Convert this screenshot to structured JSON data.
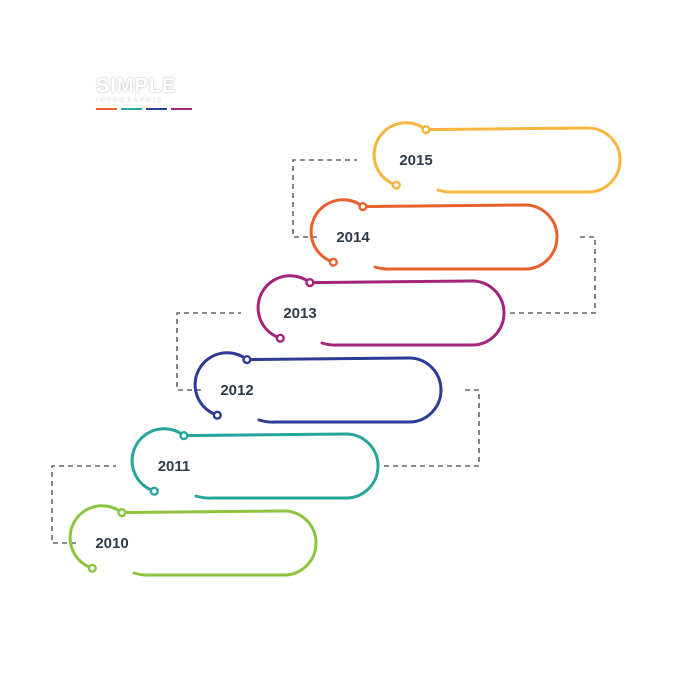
{
  "logo": {
    "title": "SIMPLE",
    "subtitle": "INFOGRAPHIC",
    "bar_colors": [
      "#e8602c",
      "#27aa9c",
      "#2d3a96",
      "#a3257a"
    ]
  },
  "steps": [
    {
      "year": "2010",
      "color": "#8bc540"
    },
    {
      "year": "2011",
      "color": "#26a69a"
    },
    {
      "year": "2012",
      "color": "#2d3a96"
    },
    {
      "year": "2013",
      "color": "#a3257a"
    },
    {
      "year": "2014",
      "color": "#e8602c"
    },
    {
      "year": "2015",
      "color": "#f6b53f"
    }
  ],
  "connector_color": "#666666"
}
